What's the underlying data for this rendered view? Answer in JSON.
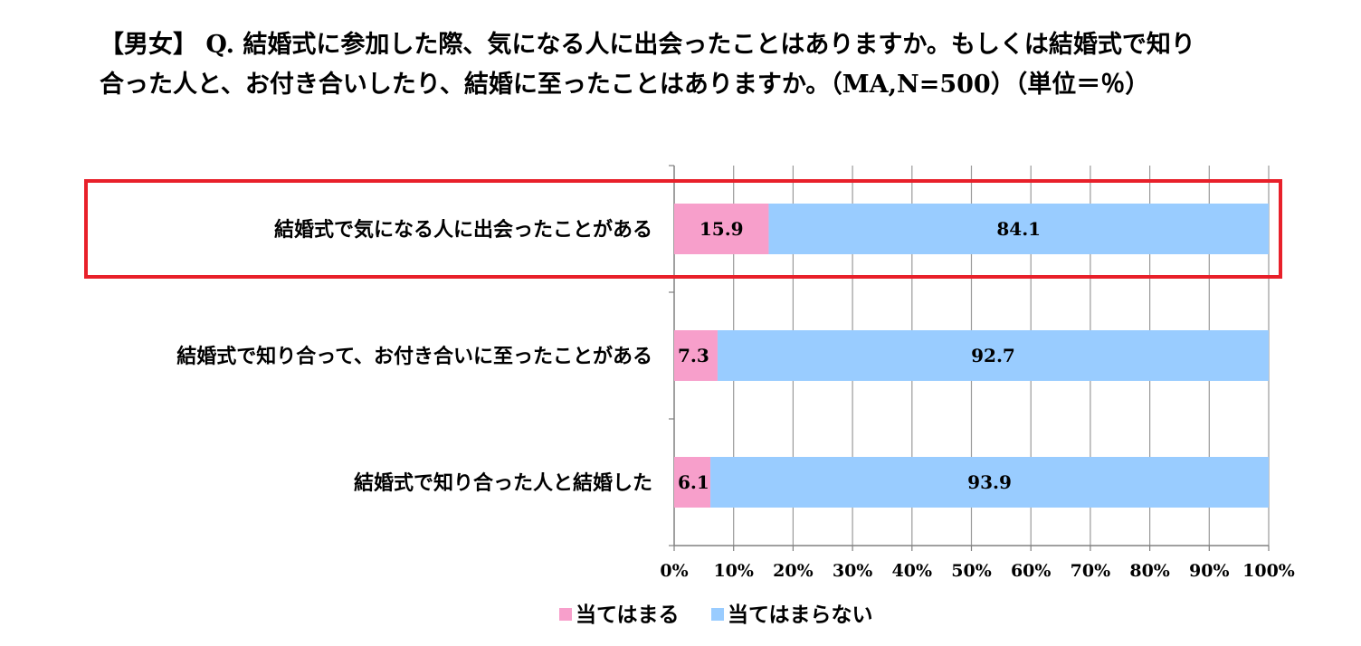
{
  "title": {
    "line1": "【男女】 Q. 結婚式に参加した際、気になる人に出会ったことはありますか。もしくは結婚式で知り",
    "line2": "合った人と、お付き合いしたり、結婚に至ったことはありますか。（MA,N=500）（単位＝％）"
  },
  "chart_data": {
    "type": "bar",
    "orientation": "horizontal",
    "stacked": "percent",
    "categories": [
      "結婚式で気になる人に出会ったことがある",
      "結婚式で知り合って、お付き合いに至ったことがある",
      "結婚式で知り合った人と結婚した"
    ],
    "series": [
      {
        "name": "当てはまる",
        "color": "#f79fcb",
        "values": [
          15.9,
          7.3,
          6.1
        ]
      },
      {
        "name": "当てはまらない",
        "color": "#99ccff",
        "values": [
          84.1,
          92.7,
          93.9
        ]
      }
    ],
    "xlim": [
      0,
      100
    ],
    "xticks": [
      "0%",
      "10%",
      "20%",
      "30%",
      "40%",
      "50%",
      "60%",
      "70%",
      "80%",
      "90%",
      "100%"
    ],
    "grid": true,
    "legend": "bottom",
    "highlight": {
      "category_index": 0,
      "color": "#e8202a"
    }
  }
}
